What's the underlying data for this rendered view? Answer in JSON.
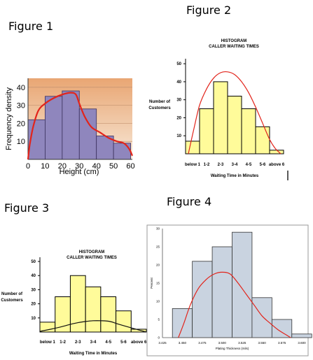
{
  "figure_labels": {
    "f1": "Figure 1",
    "f2": "Figure 2",
    "f3": "Figure 3",
    "f4": "Figure 4"
  },
  "colors": {
    "fig1_bar": "#8f86bd",
    "fig1_bg_top": "#e9a673",
    "fig1_bg_bottom": "#f7e7d6",
    "yellow_bar": "#fffb9a",
    "fig4_bar": "#c9d3e0",
    "red_curve": "#e2241b",
    "black_curve": "#111111"
  },
  "chart_data": [
    {
      "type": "bar",
      "title": "",
      "xlabel": "Height (cm)",
      "ylabel": "Frequency density",
      "bins": [
        [
          0,
          10
        ],
        [
          10,
          20
        ],
        [
          20,
          30
        ],
        [
          30,
          40
        ],
        [
          40,
          50
        ],
        [
          50,
          60
        ]
      ],
      "values": [
        22,
        35,
        38,
        28,
        13,
        9
      ],
      "xticks": [
        "0",
        "10",
        "20",
        "30",
        "40",
        "50",
        "60"
      ],
      "yticks": [
        "10",
        "20",
        "30",
        "40"
      ],
      "xlim": [
        0,
        61
      ],
      "ylim": [
        0,
        45
      ],
      "overlay_curve": {
        "color": "red",
        "x": [
          0,
          1,
          3,
          6,
          10,
          15,
          20,
          25,
          28,
          30,
          33,
          37,
          42,
          47,
          52,
          56,
          59,
          61
        ],
        "y": [
          0,
          8,
          18,
          27,
          31,
          34,
          36,
          37,
          36,
          31,
          24,
          18,
          15,
          12,
          10,
          9,
          6,
          2
        ]
      }
    },
    {
      "type": "bar",
      "title": "HISTOGRAM",
      "subtitle": "CALLER WAITING TIMES",
      "xlabel": "Waiting Time in Minutes",
      "ylabel": "Number of Customers",
      "categories": [
        "below 1",
        "1-2",
        "2-3",
        "3-4",
        "4-5",
        "5-6",
        "above 6"
      ],
      "values": [
        7,
        25,
        40,
        32,
        25,
        15,
        2
      ],
      "yticks": [
        "10",
        "20",
        "30",
        "40",
        "50"
      ],
      "ylim": [
        0,
        52
      ],
      "overlay_curve": {
        "color": "red",
        "x": [
          0.2,
          0.6,
          1.0,
          1.5,
          2.0,
          2.5,
          3.0,
          3.5,
          4.0,
          4.5,
          5.0,
          5.5,
          6.0,
          6.4,
          6.8
        ],
        "y": [
          0,
          14,
          27,
          36,
          42,
          45,
          45.5,
          44,
          40,
          34,
          26,
          17,
          8,
          3,
          0
        ]
      }
    },
    {
      "type": "bar",
      "title": "HISTOGRAM",
      "subtitle": "CALLER WAITING TIMES",
      "xlabel": "Waiting Time in Minutes",
      "ylabel": "Number of Customers",
      "categories": [
        "below 1",
        "1-2",
        "2-3",
        "3-4",
        "4-5",
        "5-6",
        "above 6"
      ],
      "values": [
        7,
        25,
        40,
        32,
        25,
        15,
        2
      ],
      "yticks": [
        "10",
        "20",
        "30",
        "40",
        "50"
      ],
      "ylim": [
        0,
        52
      ],
      "overlay_curve": {
        "color": "black",
        "x": [
          0,
          0.7,
          1.5,
          2.2,
          3.0,
          3.5,
          4.0,
          4.6,
          5.2,
          6.0,
          7.0
        ],
        "y": [
          0.5,
          2,
          4,
          6,
          7.5,
          8,
          8,
          7.5,
          5.5,
          3,
          0
        ]
      }
    },
    {
      "type": "bar",
      "title": "",
      "xlabel": "Plating Thickness (mils)",
      "ylabel": "Percent",
      "bins": [
        [
          3.4375,
          3.4625
        ],
        [
          3.4625,
          3.4875
        ],
        [
          3.4875,
          3.5125
        ],
        [
          3.5125,
          3.5375
        ],
        [
          3.5375,
          3.5625
        ],
        [
          3.5625,
          3.5875
        ],
        [
          3.5875,
          3.6125
        ]
      ],
      "values": [
        8,
        21,
        25,
        29,
        11,
        5,
        1
      ],
      "xticks": [
        "3.425",
        "3.450",
        "3.475",
        "3.500",
        "3.525",
        "3.550",
        "3.575",
        "3.600"
      ],
      "yticks": [
        "0",
        "5",
        "10",
        "15",
        "20",
        "25",
        "30"
      ],
      "xlim": [
        3.425,
        3.6
      ],
      "ylim": [
        0,
        30
      ],
      "overlay_curve": {
        "color": "red",
        "x": [
          3.445,
          3.452,
          3.46,
          3.47,
          3.48,
          3.49,
          3.5,
          3.51,
          3.52,
          3.53,
          3.54,
          3.55,
          3.56,
          3.57,
          3.58,
          3.586
        ],
        "y": [
          0,
          4,
          9,
          13.5,
          16,
          17.5,
          18,
          17.5,
          15,
          12,
          9,
          6,
          4,
          2.2,
          0.8,
          0
        ]
      }
    }
  ]
}
